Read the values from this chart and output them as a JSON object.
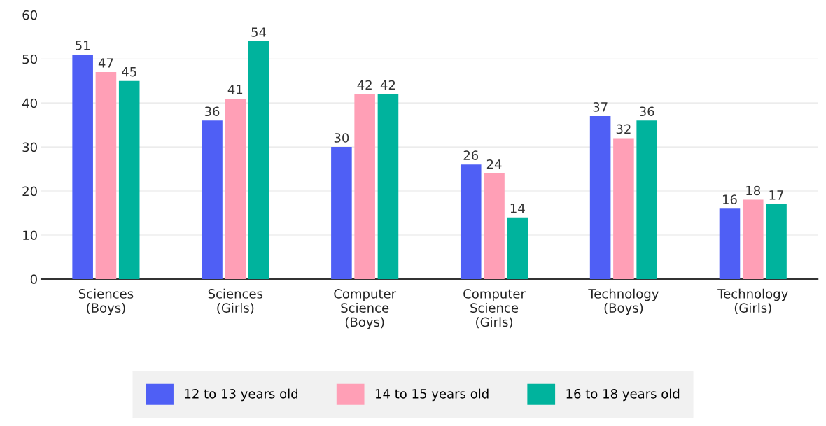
{
  "chart_data": {
    "type": "bar",
    "categories": [
      "Sciences\n(Boys)",
      "Sciences\n(Girls)",
      "Computer\nScience\n(Boys)",
      "Computer\nScience\n(Girls)",
      "Technology\n(Boys)",
      "Technology\n(Girls)"
    ],
    "series": [
      {
        "name": "12 to 13 years old",
        "color": "#4f5ff5",
        "values": [
          51,
          36,
          30,
          26,
          37,
          16
        ]
      },
      {
        "name": "14 to 15 years old",
        "color": "#ff9fb6",
        "values": [
          47,
          41,
          42,
          24,
          32,
          18
        ]
      },
      {
        "name": "16 to 18 years old",
        "color": "#00b39d",
        "values": [
          45,
          54,
          42,
          14,
          36,
          17
        ]
      }
    ],
    "ylim": [
      0,
      60
    ],
    "yticks": [
      0,
      10,
      20,
      30,
      40,
      50,
      60
    ],
    "grid": "y",
    "legend": "bottom",
    "data_labels": true
  }
}
